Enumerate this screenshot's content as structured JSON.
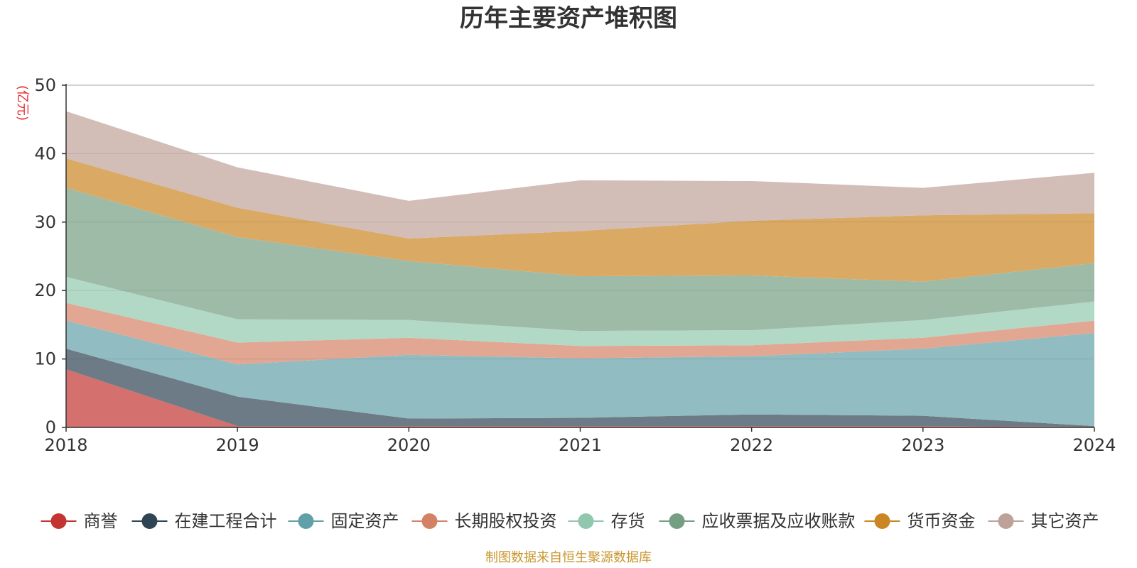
{
  "chart_data": {
    "type": "area",
    "stacked": true,
    "title": "历年主要资产堆积图",
    "y_unit": "(亿元)",
    "source_note": "制图数据来自恒生聚源数据库",
    "x": [
      "2018",
      "2019",
      "2020",
      "2021",
      "2022",
      "2023",
      "2024"
    ],
    "ylim": [
      0,
      50
    ],
    "yticks": [
      0,
      10,
      20,
      30,
      40,
      50
    ],
    "grid": true,
    "legend_position": "bottom",
    "series": [
      {
        "name": "商誉",
        "color": "#c23531",
        "fill": "#d4706e",
        "values": [
          8.5,
          0.2,
          0.2,
          0.2,
          0.2,
          0.2,
          0.1
        ]
      },
      {
        "name": "在建工程合计",
        "color": "#2f4554",
        "fill": "#6c7b85",
        "values": [
          3.0,
          4.3,
          1.1,
          1.2,
          1.7,
          1.5,
          0.1
        ]
      },
      {
        "name": "固定资产",
        "color": "#61a0a8",
        "fill": "#90bcc2",
        "values": [
          4.1,
          4.7,
          9.3,
          8.7,
          8.5,
          9.8,
          13.6
        ]
      },
      {
        "name": "长期股权投资",
        "color": "#d48265",
        "fill": "#e1a793",
        "values": [
          2.6,
          3.2,
          2.5,
          1.8,
          1.6,
          1.6,
          1.8
        ]
      },
      {
        "name": "存货",
        "color": "#91c7ae",
        "fill": "#b2d8c6",
        "values": [
          3.8,
          3.4,
          2.6,
          2.2,
          2.2,
          2.6,
          2.8
        ]
      },
      {
        "name": "应收票据及应收账款",
        "color": "#749f83",
        "fill": "#9ebba8",
        "values": [
          13.0,
          12.0,
          8.6,
          8.0,
          8.0,
          5.6,
          5.6
        ]
      },
      {
        "name": "货币资金",
        "color": "#ca8622",
        "fill": "#daa964",
        "values": [
          4.3,
          4.3,
          3.3,
          6.6,
          8.0,
          9.7,
          7.3
        ]
      },
      {
        "name": "其它资产",
        "color": "#bda29a",
        "fill": "#d2bdb7",
        "values": [
          6.9,
          5.9,
          5.5,
          7.4,
          5.8,
          4.0,
          5.9
        ]
      }
    ]
  }
}
